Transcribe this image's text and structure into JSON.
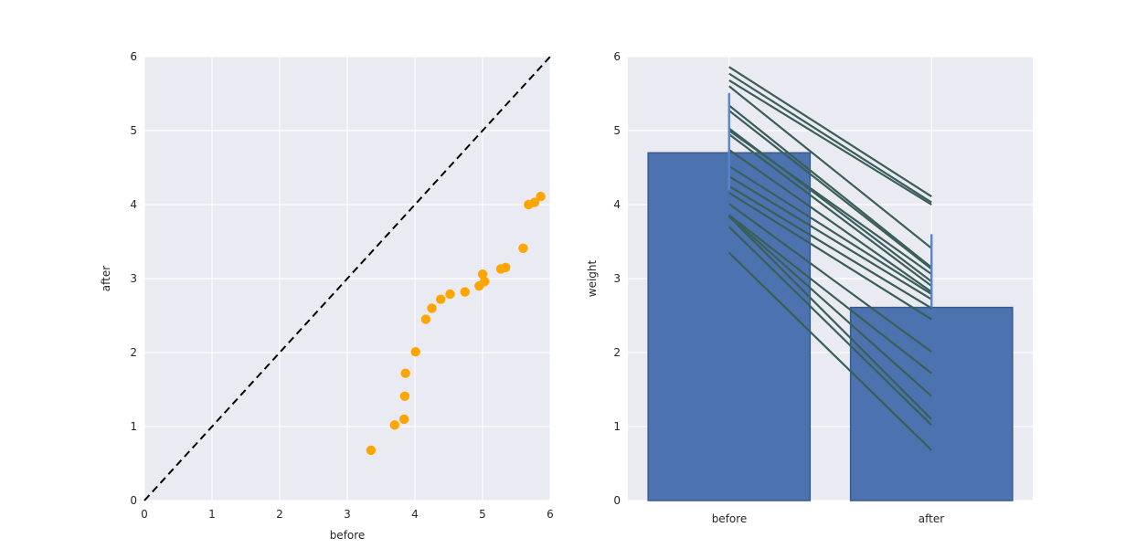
{
  "styles": {
    "figure_bg": "#ffffff",
    "panel_bg": "#eaeaf2",
    "grid_color": "#ffffff",
    "text_color": "#262626",
    "scatter_dot_color": "#ffa500",
    "identity_line_color": "#000000",
    "bar_fill": "#4c72b0",
    "bar_edge": "#3a5a8c",
    "error_bar_color": "#5b84c8",
    "pair_line_color": "#3a5f58"
  },
  "chart_data": [
    {
      "type": "scatter",
      "title": "",
      "xlabel": "before",
      "ylabel": "after",
      "xlim": [
        0,
        6
      ],
      "ylim": [
        0,
        6
      ],
      "xticks": [
        0,
        1,
        2,
        3,
        4,
        5,
        6
      ],
      "yticks": [
        0,
        1,
        2,
        3,
        4,
        5,
        6
      ],
      "grid": true,
      "identity_line": {
        "style": "dashed",
        "from": [
          0,
          0
        ],
        "to": [
          6,
          6
        ]
      },
      "points": [
        [
          3.35,
          0.68
        ],
        [
          3.7,
          1.02
        ],
        [
          3.84,
          1.1
        ],
        [
          3.85,
          1.41
        ],
        [
          3.86,
          1.72
        ],
        [
          4.01,
          2.01
        ],
        [
          4.16,
          2.45
        ],
        [
          4.25,
          2.6
        ],
        [
          4.38,
          2.72
        ],
        [
          4.52,
          2.79
        ],
        [
          4.74,
          2.82
        ],
        [
          4.95,
          2.9
        ],
        [
          5.0,
          3.06
        ],
        [
          5.03,
          2.96
        ],
        [
          5.27,
          3.13
        ],
        [
          5.34,
          3.15
        ],
        [
          5.6,
          3.41
        ],
        [
          5.68,
          4.0
        ],
        [
          5.77,
          4.03
        ],
        [
          5.86,
          4.11
        ]
      ]
    },
    {
      "type": "bar",
      "title": "",
      "categories": [
        "before",
        "after"
      ],
      "values": [
        4.7,
        2.61
      ],
      "error_bars": [
        [
          4.2,
          5.51
        ],
        [
          2.61,
          3.6
        ]
      ],
      "xlabel": "",
      "ylabel": "weight",
      "ylim": [
        0,
        6
      ],
      "yticks": [
        0,
        1,
        2,
        3,
        4,
        5,
        6
      ],
      "grid": true,
      "bar_width_fraction": 0.8,
      "paired_lines": {
        "description": "one line per subject from before-category center to after-category center",
        "pairs": [
          [
            3.35,
            0.68
          ],
          [
            3.7,
            1.02
          ],
          [
            3.84,
            1.1
          ],
          [
            3.85,
            1.41
          ],
          [
            3.86,
            1.72
          ],
          [
            4.01,
            2.01
          ],
          [
            4.16,
            2.45
          ],
          [
            4.25,
            2.6
          ],
          [
            4.38,
            2.72
          ],
          [
            4.52,
            2.79
          ],
          [
            4.74,
            2.82
          ],
          [
            4.95,
            2.9
          ],
          [
            5.0,
            3.06
          ],
          [
            5.03,
            2.96
          ],
          [
            5.27,
            3.13
          ],
          [
            5.34,
            3.15
          ],
          [
            5.6,
            3.41
          ],
          [
            5.68,
            4.0
          ],
          [
            5.77,
            4.03
          ],
          [
            5.86,
            4.11
          ]
        ]
      }
    }
  ]
}
